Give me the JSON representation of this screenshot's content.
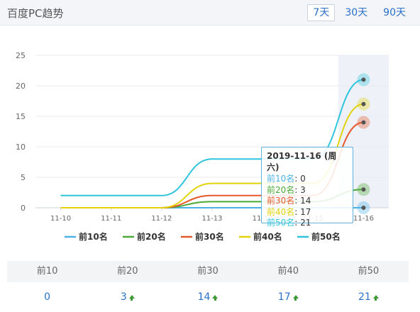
{
  "header": {
    "title": "百度PC趋势",
    "tabs": [
      {
        "label": "7天",
        "active": true
      },
      {
        "label": "30天",
        "active": false
      },
      {
        "label": "90天",
        "active": false
      }
    ]
  },
  "chart_data": {
    "type": "line",
    "title": "",
    "xlabel": "",
    "ylabel": "",
    "categories": [
      "11-10",
      "11-11",
      "11-12",
      "11-13",
      "11-14",
      "11-15",
      "11-16"
    ],
    "ylim": [
      0,
      25
    ],
    "yticks": [
      0,
      5,
      10,
      15,
      20,
      25
    ],
    "grid": true,
    "legend_position": "bottom",
    "highlighted_category": "11-16",
    "series": [
      {
        "name": "前10名",
        "color": "#4cb2e6",
        "values": [
          0,
          0,
          0,
          0,
          0,
          0,
          0
        ]
      },
      {
        "name": "前20名",
        "color": "#4daa38",
        "values": [
          0,
          0,
          0,
          1,
          1,
          1,
          3
        ]
      },
      {
        "name": "前30名",
        "color": "#e5582a",
        "values": [
          0,
          0,
          0,
          2,
          2,
          2,
          14
        ]
      },
      {
        "name": "前40名",
        "color": "#e3d20e",
        "values": [
          0,
          0,
          0,
          4,
          4,
          4,
          17
        ]
      },
      {
        "name": "前50名",
        "color": "#2fc5dc",
        "values": [
          2,
          2,
          2,
          8,
          8,
          8,
          21
        ]
      }
    ]
  },
  "tooltip": {
    "title": "2019-11-16 (周六)",
    "rows": [
      {
        "label": "前10名",
        "value": "0",
        "color": "#4cb2e6"
      },
      {
        "label": "前20名",
        "value": "3",
        "color": "#4daa38"
      },
      {
        "label": "前30名",
        "value": "14",
        "color": "#e5582a"
      },
      {
        "label": "前40名",
        "value": "17",
        "color": "#e3d20e"
      },
      {
        "label": "前50名",
        "value": "21",
        "color": "#2fc5dc"
      }
    ]
  },
  "table": {
    "headers": [
      "前10",
      "前20",
      "前30",
      "前40",
      "前50"
    ],
    "values": [
      "0",
      "3",
      "14",
      "17",
      "21"
    ],
    "trend_up": [
      false,
      true,
      true,
      true,
      true
    ]
  },
  "colors": {
    "link": "#2a6fc9",
    "trend_up": "#3c9a33"
  }
}
